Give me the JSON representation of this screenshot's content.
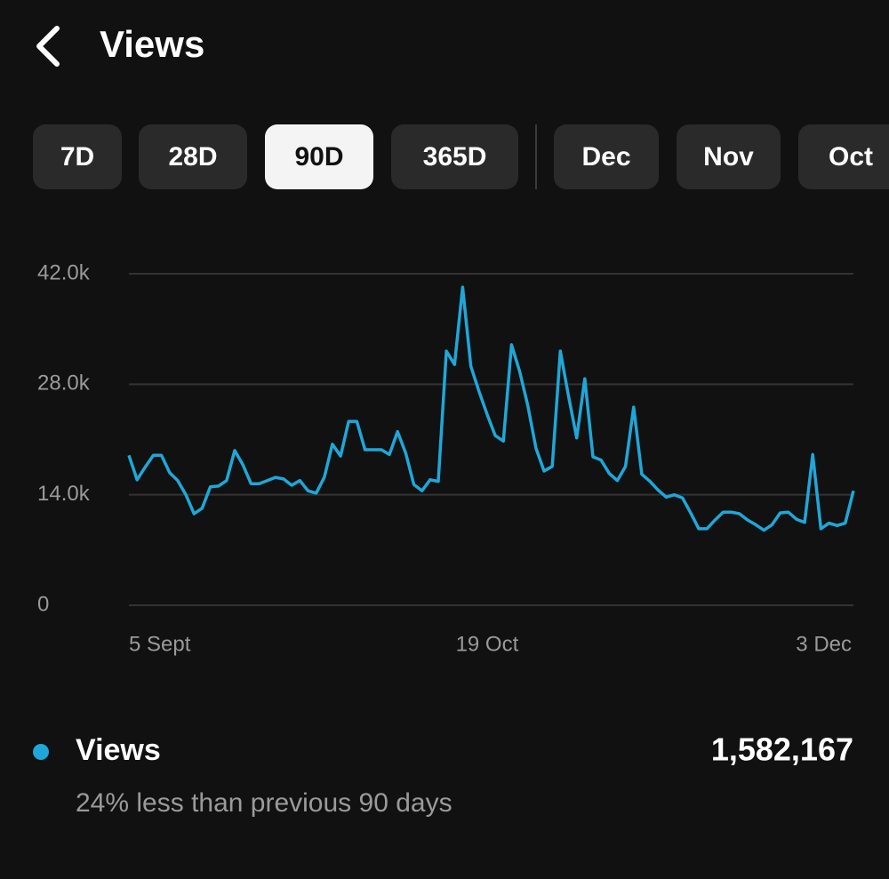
{
  "header": {
    "title": "Views"
  },
  "tabs": [
    "7D",
    "28D",
    "90D",
    "365D",
    "Dec",
    "Nov",
    "Oct"
  ],
  "chart_data": {
    "type": "line",
    "categories": [
      "5 Sept",
      null,
      null,
      null,
      null,
      null,
      null,
      null,
      null,
      null,
      null,
      null,
      null,
      null,
      null,
      null,
      null,
      null,
      null,
      null,
      null,
      null,
      null,
      null,
      null,
      null,
      null,
      null,
      null,
      null,
      null,
      null,
      null,
      null,
      null,
      null,
      null,
      null,
      null,
      null,
      null,
      null,
      null,
      null,
      "19 Oct",
      null,
      null,
      null,
      null,
      null,
      null,
      null,
      null,
      null,
      null,
      null,
      null,
      null,
      null,
      null,
      null,
      null,
      null,
      null,
      null,
      null,
      null,
      null,
      null,
      null,
      null,
      null,
      null,
      null,
      null,
      null,
      null,
      null,
      null,
      null,
      null,
      null,
      null,
      null,
      null,
      null,
      null,
      null,
      null,
      "3 Dec"
    ],
    "series": [
      {
        "name": "Views",
        "color": "#1ea7d8",
        "values": [
          19000,
          15900,
          17500,
          19000,
          19000,
          16800,
          15800,
          14000,
          11600,
          12300,
          15000,
          15100,
          15800,
          19600,
          17800,
          15400,
          15400,
          15800,
          16200,
          16000,
          15200,
          15800,
          14500,
          14200,
          16200,
          20400,
          18900,
          23300,
          23300,
          19700,
          19700,
          19700,
          19100,
          22000,
          19300,
          15300,
          14500,
          15900,
          15700,
          32200,
          30500,
          40300,
          30300,
          27100,
          24200,
          21500,
          20800,
          33000,
          29600,
          25300,
          19900,
          17000,
          17600,
          32200,
          26500,
          21200,
          28700,
          18800,
          18400,
          16700,
          15800,
          17600,
          25100,
          16600,
          15700,
          14600,
          13700,
          14000,
          13600,
          11700,
          9700,
          9700,
          10800,
          11800,
          11800,
          11600,
          10800,
          10200,
          9500,
          10200,
          11700,
          11800,
          10900,
          10500,
          19100,
          9700,
          10400,
          10100,
          10400,
          14500
        ]
      }
    ],
    "ylim": [
      0,
      42000
    ],
    "yticks": [
      0,
      {
        "value": 14000,
        "label": "14.0k"
      },
      {
        "value": 28000,
        "label": "28.0k"
      },
      {
        "value": 42000,
        "label": "42.0k"
      }
    ],
    "grid": true
  },
  "summary": {
    "total": "1,582,167",
    "comparison": "24% less than previous 90 days"
  }
}
